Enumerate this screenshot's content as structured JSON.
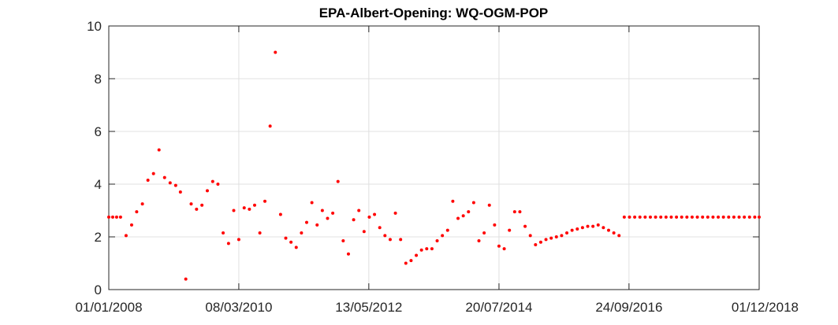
{
  "chart_data": {
    "type": "scatter",
    "title": "EPA-Albert-Opening: WQ-OGM-POP",
    "xlabel": "",
    "ylabel": "",
    "x_axis": "date",
    "xlim": [
      "2008-01-01",
      "2018-12-01"
    ],
    "ylim": [
      0,
      10
    ],
    "xticks": [
      "01/01/2008",
      "08/03/2010",
      "13/05/2012",
      "20/07/2014",
      "24/09/2016",
      "01/12/2018"
    ],
    "yticks": [
      "0",
      "2",
      "4",
      "6",
      "8",
      "10"
    ],
    "grid": true,
    "legend": "none",
    "marker_color": "#ff0000",
    "series": [
      {
        "points": [
          [
            "2008-01-01",
            2.75
          ],
          [
            "2008-01-25",
            2.75
          ],
          [
            "2008-02-18",
            2.75
          ],
          [
            "2008-03-13",
            2.75
          ],
          [
            "2008-04-16",
            2.05
          ],
          [
            "2008-05-20",
            2.45
          ],
          [
            "2008-06-20",
            2.95
          ],
          [
            "2008-07-25",
            3.25
          ],
          [
            "2008-08-28",
            4.15
          ],
          [
            "2008-10-01",
            4.4
          ],
          [
            "2008-11-04",
            5.3
          ],
          [
            "2008-12-08",
            4.25
          ],
          [
            "2009-01-11",
            4.05
          ],
          [
            "2009-02-14",
            3.95
          ],
          [
            "2009-03-15",
            3.7
          ],
          [
            "2009-04-17",
            0.4
          ],
          [
            "2009-05-20",
            3.25
          ],
          [
            "2009-06-22",
            3.05
          ],
          [
            "2009-07-25",
            3.2
          ],
          [
            "2009-08-27",
            3.75
          ],
          [
            "2009-09-29",
            4.1
          ],
          [
            "2009-10-31",
            4.0
          ],
          [
            "2009-12-02",
            2.15
          ],
          [
            "2010-01-04",
            1.75
          ],
          [
            "2010-02-05",
            3.0
          ],
          [
            "2010-03-08",
            1.9
          ],
          [
            "2010-04-10",
            3.1
          ],
          [
            "2010-05-12",
            3.05
          ],
          [
            "2010-06-13",
            3.2
          ],
          [
            "2010-07-15",
            2.15
          ],
          [
            "2010-08-15",
            3.35
          ],
          [
            "2010-09-16",
            6.2
          ],
          [
            "2010-10-18",
            9.0
          ],
          [
            "2010-11-19",
            2.85
          ],
          [
            "2010-12-21",
            1.95
          ],
          [
            "2011-01-22",
            1.8
          ],
          [
            "2011-02-23",
            1.6
          ],
          [
            "2011-03-27",
            2.15
          ],
          [
            "2011-04-28",
            2.55
          ],
          [
            "2011-05-30",
            3.3
          ],
          [
            "2011-07-01",
            2.45
          ],
          [
            "2011-08-02",
            3.0
          ],
          [
            "2011-09-03",
            2.7
          ],
          [
            "2011-10-05",
            2.9
          ],
          [
            "2011-11-06",
            4.1
          ],
          [
            "2011-12-08",
            1.85
          ],
          [
            "2012-01-09",
            1.35
          ],
          [
            "2012-02-10",
            2.65
          ],
          [
            "2012-03-13",
            3.0
          ],
          [
            "2012-04-14",
            2.2
          ],
          [
            "2012-05-16",
            2.75
          ],
          [
            "2012-06-17",
            2.85
          ],
          [
            "2012-07-19",
            2.35
          ],
          [
            "2012-08-20",
            2.05
          ],
          [
            "2012-09-21",
            1.9
          ],
          [
            "2012-10-23",
            2.9
          ],
          [
            "2012-11-24",
            1.9
          ],
          [
            "2012-12-26",
            1.0
          ],
          [
            "2013-01-27",
            1.1
          ],
          [
            "2013-02-28",
            1.3
          ],
          [
            "2013-04-01",
            1.5
          ],
          [
            "2013-05-03",
            1.55
          ],
          [
            "2013-06-04",
            1.55
          ],
          [
            "2013-07-06",
            1.85
          ],
          [
            "2013-08-07",
            2.05
          ],
          [
            "2013-09-08",
            2.25
          ],
          [
            "2013-10-10",
            3.35
          ],
          [
            "2013-11-11",
            2.7
          ],
          [
            "2013-12-13",
            2.8
          ],
          [
            "2014-01-14",
            2.95
          ],
          [
            "2014-02-15",
            3.3
          ],
          [
            "2014-03-19",
            1.85
          ],
          [
            "2014-04-20",
            2.15
          ],
          [
            "2014-05-22",
            3.2
          ],
          [
            "2014-06-23",
            2.45
          ],
          [
            "2014-07-20",
            1.65
          ],
          [
            "2014-08-21",
            1.55
          ],
          [
            "2014-09-22",
            2.25
          ],
          [
            "2014-10-24",
            2.95
          ],
          [
            "2014-11-25",
            2.95
          ],
          [
            "2014-12-27",
            2.4
          ],
          [
            "2015-01-28",
            2.05
          ],
          [
            "2015-03-01",
            1.7
          ],
          [
            "2015-04-02",
            1.8
          ],
          [
            "2015-05-04",
            1.9
          ],
          [
            "2015-06-05",
            1.95
          ],
          [
            "2015-07-07",
            2.0
          ],
          [
            "2015-08-08",
            2.05
          ],
          [
            "2015-09-09",
            2.15
          ],
          [
            "2015-10-11",
            2.25
          ],
          [
            "2015-11-12",
            2.3
          ],
          [
            "2015-12-14",
            2.35
          ],
          [
            "2016-01-15",
            2.4
          ],
          [
            "2016-02-16",
            2.4
          ],
          [
            "2016-03-19",
            2.45
          ],
          [
            "2016-04-20",
            2.35
          ],
          [
            "2016-05-22",
            2.25
          ],
          [
            "2016-06-23",
            2.15
          ],
          [
            "2016-07-25",
            2.05
          ],
          [
            "2016-08-26",
            2.75
          ],
          [
            "2016-09-27",
            2.75
          ],
          [
            "2016-10-29",
            2.75
          ],
          [
            "2016-11-30",
            2.75
          ],
          [
            "2017-01-01",
            2.75
          ],
          [
            "2017-02-02",
            2.75
          ],
          [
            "2017-03-06",
            2.75
          ],
          [
            "2017-04-07",
            2.75
          ],
          [
            "2017-05-09",
            2.75
          ],
          [
            "2017-06-10",
            2.75
          ],
          [
            "2017-07-12",
            2.75
          ],
          [
            "2017-08-13",
            2.75
          ],
          [
            "2017-09-14",
            2.75
          ],
          [
            "2017-10-16",
            2.75
          ],
          [
            "2017-11-17",
            2.75
          ],
          [
            "2017-12-19",
            2.75
          ],
          [
            "2018-01-20",
            2.75
          ],
          [
            "2018-02-21",
            2.75
          ],
          [
            "2018-03-25",
            2.75
          ],
          [
            "2018-04-26",
            2.75
          ],
          [
            "2018-05-28",
            2.75
          ],
          [
            "2018-06-29",
            2.75
          ],
          [
            "2018-07-31",
            2.75
          ],
          [
            "2018-09-01",
            2.75
          ],
          [
            "2018-10-03",
            2.75
          ],
          [
            "2018-11-04",
            2.75
          ],
          [
            "2018-12-01",
            2.75
          ]
        ]
      }
    ]
  }
}
